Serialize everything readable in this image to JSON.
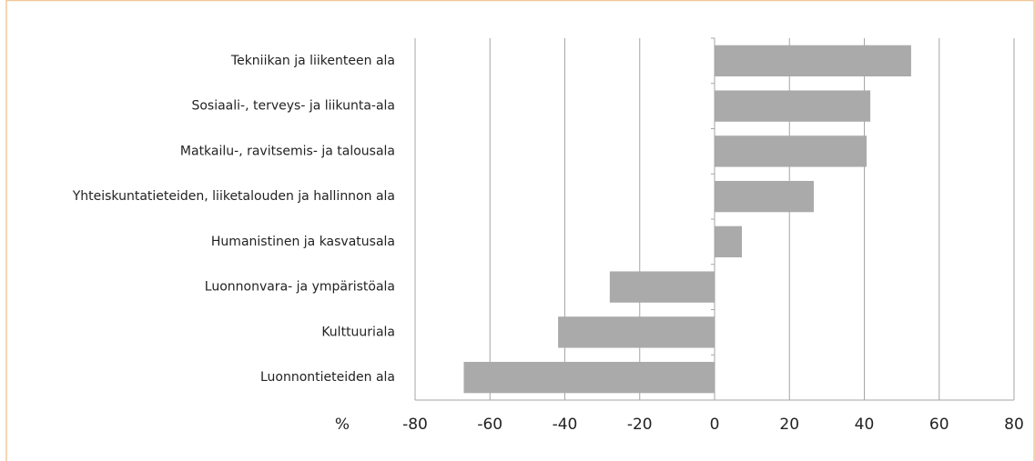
{
  "chart_data": {
    "type": "barh",
    "x_label": "%",
    "categories": [
      "Tekniikan ja liikenteen ala",
      "Sosiaali-, terveys- ja liikunta-ala",
      "Matkailu-, ravitsemis- ja talousala",
      "Yhteiskuntatieteiden, liiketalouden ja hallinnon ala",
      "Humanistinen ja kasvatusala",
      "Luonnonvara- ja ympäristöala",
      "Kulttuuriala",
      "Luonnontieteiden ala"
    ],
    "values": [
      52.5,
      41.6,
      40.6,
      26.5,
      7.3,
      -28,
      -41.8,
      -67
    ],
    "color": "#aaaaab",
    "xlim": [
      -80,
      80
    ],
    "xticks": [
      -80,
      -60,
      -40,
      -20,
      0,
      20,
      40,
      60,
      80
    ],
    "grid": true
  }
}
